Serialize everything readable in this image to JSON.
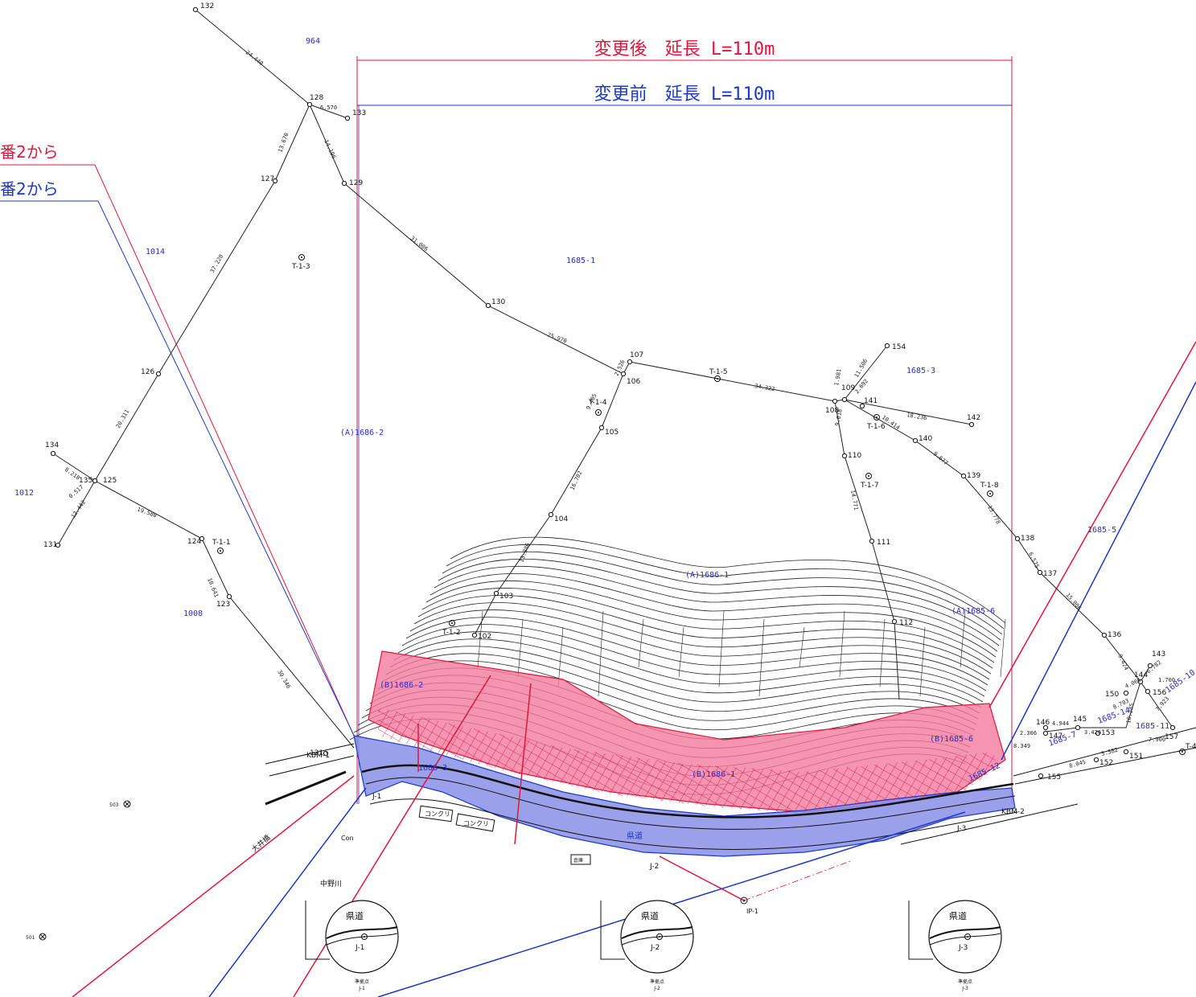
{
  "titles": {
    "after": "変更後　延長 L=110m",
    "before": "変更前　延長 L=110m",
    "left_red": "番2から",
    "left_blue": "番2から"
  },
  "colors": {
    "after_red": "#e0163d",
    "before_blue": "#1b39c8",
    "parcel_blue": "#2b2bd6",
    "fill_pink": "#f27a9c",
    "fill_blue": "#8a8fe6"
  },
  "points": [
    {
      "id": "132",
      "label": "132"
    },
    {
      "id": "128",
      "label": "128"
    },
    {
      "id": "133",
      "label": "133"
    },
    {
      "id": "127",
      "label": "127"
    },
    {
      "id": "129",
      "label": "129"
    },
    {
      "id": "126",
      "label": "126"
    },
    {
      "id": "125",
      "label": "125"
    },
    {
      "id": "135",
      "label": "135"
    },
    {
      "id": "134",
      "label": "134"
    },
    {
      "id": "131",
      "label": "131"
    },
    {
      "id": "124",
      "label": "124"
    },
    {
      "id": "123",
      "label": "123"
    },
    {
      "id": "130",
      "label": "130"
    },
    {
      "id": "107",
      "label": "107"
    },
    {
      "id": "106",
      "label": "106"
    },
    {
      "id": "105",
      "label": "105"
    },
    {
      "id": "104",
      "label": "104"
    },
    {
      "id": "103",
      "label": "103"
    },
    {
      "id": "102",
      "label": "102"
    },
    {
      "id": "108",
      "label": "108"
    },
    {
      "id": "109",
      "label": "109"
    },
    {
      "id": "141",
      "label": "141"
    },
    {
      "id": "142",
      "label": "142"
    },
    {
      "id": "154",
      "label": "154"
    },
    {
      "id": "140",
      "label": "140"
    },
    {
      "id": "139",
      "label": "139"
    },
    {
      "id": "138",
      "label": "138"
    },
    {
      "id": "137",
      "label": "137"
    },
    {
      "id": "136",
      "label": "136"
    },
    {
      "id": "144",
      "label": "144"
    },
    {
      "id": "143",
      "label": "143"
    },
    {
      "id": "110",
      "label": "110"
    },
    {
      "id": "111",
      "label": "111"
    },
    {
      "id": "112",
      "label": "112"
    },
    {
      "id": "121",
      "label": "121"
    },
    {
      "id": "146",
      "label": "146"
    },
    {
      "id": "147",
      "label": "147"
    },
    {
      "id": "145",
      "label": "145"
    },
    {
      "id": "150",
      "label": "150"
    },
    {
      "id": "156",
      "label": "156"
    },
    {
      "id": "157",
      "label": "157"
    },
    {
      "id": "153",
      "label": "153"
    },
    {
      "id": "151",
      "label": "151"
    },
    {
      "id": "152",
      "label": "152"
    },
    {
      "id": "155",
      "label": "155"
    }
  ],
  "tbm": [
    {
      "label": "T-1-3"
    },
    {
      "label": "T-1-5"
    },
    {
      "label": "T-1-4"
    },
    {
      "label": "T-1-6"
    },
    {
      "label": "T-1-7"
    },
    {
      "label": "T-1-8"
    },
    {
      "label": "T-1-1"
    },
    {
      "label": "T-1-2"
    },
    {
      "label": "T-4"
    }
  ],
  "distances": [
    "24.440",
    "6.570",
    "13.670",
    "14.196",
    "31.006",
    "37.220",
    "25.970",
    "20.311",
    "8.218",
    "0.517",
    "12.442",
    "19.580",
    "10.641",
    "30.346",
    "9.405",
    "2.526",
    "16.702",
    "13.386",
    "34.322",
    "1.981",
    "11.506",
    "2.692",
    "18.236",
    "10.414",
    "9.677",
    "9.018",
    "14.771",
    "13.778",
    "6.575",
    "15.006",
    "9.424",
    "6.782",
    "1.700",
    "4.066",
    "7.923",
    "8.703",
    "10.285",
    "4.944",
    "3.426",
    "2.306",
    "8.349",
    "5.582",
    "8.045",
    "7.900"
  ],
  "parcels": [
    "964",
    "1014",
    "1685-1",
    "1685-3",
    "(A)1686-2",
    "1012",
    "1008",
    "(A)1686-1",
    "(A)1685-6",
    "1685-5",
    "1685-10",
    "1685-11",
    "1685-14",
    "1685-7",
    "(B)1686-2",
    "(B)1685-6",
    "(B)1686-1",
    "1686-3",
    "1685-12"
  ],
  "misc_labels": {
    "kbm1": "KBM-1",
    "kbm2": "KBM-2",
    "road": "県道",
    "river": "中野川",
    "bridge": "大井橋",
    "con": "Con",
    "concrete1": "コンクリ",
    "concrete2": "コンクリ",
    "ip1": "IP-1",
    "j1": "J-1",
    "j2": "J-2",
    "j3": "J-3",
    "bm503": "503",
    "bm501": "501",
    "warehouse": "倉庫"
  },
  "insets": [
    {
      "road": "県道",
      "point": "J-1",
      "caption": "準拠点",
      "sub": "J-1"
    },
    {
      "road": "県道",
      "point": "J-2",
      "caption": "準拠点",
      "sub": "J-2"
    },
    {
      "road": "県道",
      "point": "J-3",
      "caption": "準拠点",
      "sub": "J-3"
    }
  ]
}
